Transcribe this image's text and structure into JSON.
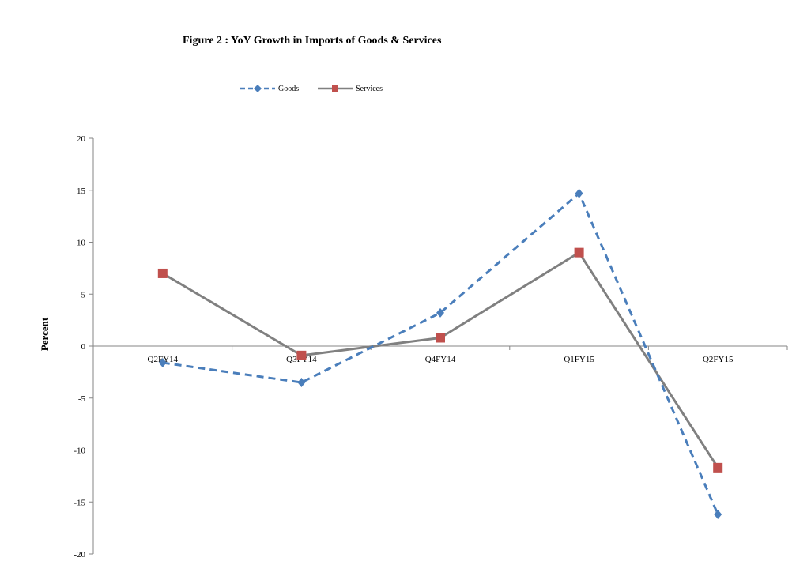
{
  "chart_data": {
    "type": "line",
    "title": "Figure 2 : YoY Growth in Imports of Goods & Services",
    "ylabel": "Percent",
    "xlabel": "",
    "categories": [
      "Q2FY14",
      "Q3FY14",
      "Q4FY14",
      "Q1FY15",
      "Q2FY15"
    ],
    "ylim": [
      -20,
      20
    ],
    "yticks": [
      20,
      15,
      10,
      5,
      0,
      -5,
      -10,
      -15,
      -20
    ],
    "grid": false,
    "legend_position": "top",
    "series": [
      {
        "name": "Goods",
        "values": [
          -1.6,
          -3.5,
          3.2,
          14.7,
          -16.2
        ],
        "color": "#4a7ebb",
        "line_style": "dashed",
        "marker": "diamond"
      },
      {
        "name": "Services",
        "values": [
          7.0,
          -0.9,
          0.8,
          9.0,
          -11.7
        ],
        "color": "#808080",
        "marker_color": "#c0504d",
        "line_style": "solid",
        "marker": "square"
      }
    ]
  }
}
